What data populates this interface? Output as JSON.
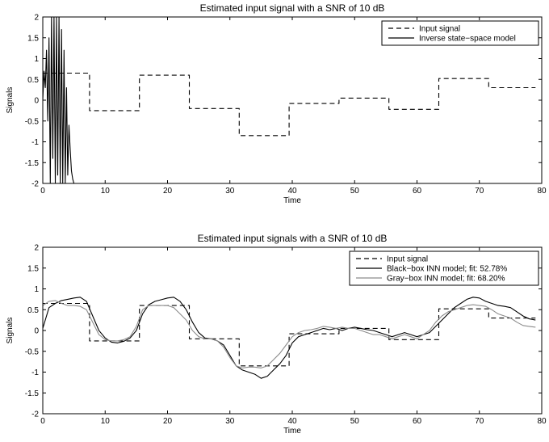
{
  "chart_data": [
    {
      "type": "line",
      "title": "Estimated input signal with a SNR of 10 dB",
      "xlabel": "Time",
      "ylabel": "Signals",
      "xlim": [
        0,
        80
      ],
      "ylim": [
        -2,
        2
      ],
      "xticks": [
        "0",
        "10",
        "20",
        "30",
        "40",
        "50",
        "60",
        "70",
        "80"
      ],
      "yticks": [
        "-2",
        "-1.5",
        "-1",
        "-0.5",
        "0",
        "0.5",
        "1",
        "1.5",
        "2"
      ],
      "legend_position": "top-right",
      "grid": false,
      "series": [
        {
          "name": "Input signal",
          "style": "dashed",
          "color": "#000000",
          "x": [
            0,
            7.5,
            7.5,
            15.5,
            15.5,
            23.5,
            23.5,
            31.5,
            31.5,
            39.5,
            39.5,
            47.5,
            47.5,
            55.5,
            55.5,
            63.5,
            63.5,
            71.5,
            71.5,
            79
          ],
          "y": [
            0.65,
            0.65,
            -0.25,
            -0.25,
            0.6,
            0.6,
            -0.2,
            -0.2,
            -0.85,
            -0.85,
            -0.08,
            -0.08,
            0.05,
            0.05,
            -0.22,
            -0.22,
            0.52,
            0.52,
            0.3,
            0.3
          ]
        },
        {
          "name": "Inverse state−space model",
          "style": "solid",
          "color": "#000000",
          "x": [
            0,
            0.2,
            0.4,
            0.6,
            0.8,
            1.0,
            1.2,
            1.4,
            1.6,
            1.8,
            2.0,
            2.2,
            2.4,
            2.6,
            2.8,
            3.0,
            3.2,
            3.4,
            3.6,
            3.8,
            4.0,
            4.2,
            4.4,
            4.6,
            4.8,
            5.0,
            5.2
          ],
          "y": [
            0.0,
            0.7,
            0.3,
            1.2,
            -0.5,
            1.5,
            -2.0,
            2.0,
            -1.4,
            2.0,
            -2.0,
            2.0,
            -1.8,
            2.0,
            -2.0,
            1.7,
            -2.0,
            1.2,
            -2.0,
            0.3,
            -1.8,
            -0.6,
            -1.2,
            -1.7,
            -1.9,
            -2.0,
            -2.0
          ]
        }
      ]
    },
    {
      "type": "line",
      "title": "Estimated input signals with a SNR of 10 dB",
      "xlabel": "Time",
      "ylabel": "Signals",
      "xlim": [
        0,
        80
      ],
      "ylim": [
        -2,
        2
      ],
      "xticks": [
        "0",
        "10",
        "20",
        "30",
        "40",
        "50",
        "60",
        "70",
        "80"
      ],
      "yticks": [
        "-2",
        "-1.5",
        "-1",
        "-0.5",
        "0",
        "0.5",
        "1",
        "1.5",
        "2"
      ],
      "legend_position": "top-right",
      "grid": false,
      "series": [
        {
          "name": "Input signal",
          "style": "dashed",
          "color": "#000000",
          "x": [
            0,
            7.5,
            7.5,
            15.5,
            15.5,
            23.5,
            23.5,
            31.5,
            31.5,
            39.5,
            39.5,
            47.5,
            47.5,
            55.5,
            55.5,
            63.5,
            63.5,
            71.5,
            71.5,
            79
          ],
          "y": [
            0.65,
            0.65,
            -0.25,
            -0.25,
            0.6,
            0.6,
            -0.2,
            -0.2,
            -0.85,
            -0.85,
            -0.08,
            -0.08,
            0.05,
            0.05,
            -0.22,
            -0.22,
            0.52,
            0.52,
            0.3,
            0.3
          ]
        },
        {
          "name": "Black−box INN model; fit: 52.78%",
          "style": "solid",
          "color": "#000000",
          "x": [
            0,
            1,
            2,
            3,
            4,
            5,
            6,
            7,
            8,
            9,
            10,
            11,
            12,
            13,
            14,
            15,
            16,
            17,
            18,
            19,
            20,
            21,
            22,
            23,
            24,
            25,
            26,
            27,
            28,
            29,
            30,
            31,
            32,
            33,
            34,
            35,
            36,
            37,
            38,
            39,
            40,
            41,
            42,
            43,
            44,
            45,
            46,
            47,
            48,
            49,
            50,
            51,
            52,
            53,
            54,
            55,
            56,
            57,
            58,
            59,
            60,
            61,
            62,
            63,
            64,
            65,
            66,
            67,
            68,
            69,
            70,
            71,
            72,
            73,
            74,
            75,
            76,
            77,
            78,
            79
          ],
          "y": [
            0.05,
            0.55,
            0.65,
            0.72,
            0.75,
            0.78,
            0.8,
            0.7,
            0.35,
            0.0,
            -0.18,
            -0.28,
            -0.3,
            -0.26,
            -0.18,
            0.0,
            0.4,
            0.62,
            0.7,
            0.74,
            0.78,
            0.8,
            0.7,
            0.5,
            0.2,
            -0.05,
            -0.18,
            -0.2,
            -0.25,
            -0.35,
            -0.6,
            -0.85,
            -0.95,
            -1.0,
            -1.05,
            -1.15,
            -1.1,
            -0.95,
            -0.8,
            -0.6,
            -0.3,
            -0.15,
            -0.1,
            -0.05,
            0.0,
            0.05,
            0.02,
            0.05,
            0.0,
            0.05,
            0.08,
            0.05,
            0.02,
            0.0,
            -0.05,
            -0.1,
            -0.15,
            -0.1,
            -0.05,
            -0.1,
            -0.15,
            -0.1,
            -0.05,
            0.1,
            0.25,
            0.4,
            0.55,
            0.65,
            0.75,
            0.8,
            0.78,
            0.7,
            0.65,
            0.6,
            0.58,
            0.55,
            0.45,
            0.35,
            0.28,
            0.25
          ]
        },
        {
          "name": "Gray−box INN model; fit: 68.20%",
          "style": "solid",
          "color": "#8c8c8c",
          "x": [
            0,
            1,
            2,
            3,
            4,
            5,
            6,
            7,
            8,
            9,
            10,
            11,
            12,
            13,
            14,
            15,
            16,
            17,
            18,
            19,
            20,
            21,
            22,
            23,
            24,
            25,
            26,
            27,
            28,
            29,
            30,
            31,
            32,
            33,
            34,
            35,
            36,
            37,
            38,
            39,
            40,
            41,
            42,
            43,
            44,
            45,
            46,
            47,
            48,
            49,
            50,
            51,
            52,
            53,
            54,
            55,
            56,
            57,
            58,
            59,
            60,
            61,
            62,
            63,
            64,
            65,
            66,
            67,
            68,
            69,
            70,
            71,
            72,
            73,
            74,
            75,
            76,
            77,
            78,
            79
          ],
          "y": [
            0.6,
            0.7,
            0.72,
            0.65,
            0.6,
            0.6,
            0.58,
            0.5,
            0.2,
            -0.1,
            -0.22,
            -0.25,
            -0.25,
            -0.22,
            -0.15,
            0.1,
            0.5,
            0.6,
            0.6,
            0.6,
            0.6,
            0.55,
            0.4,
            0.25,
            0.0,
            -0.15,
            -0.2,
            -0.2,
            -0.25,
            -0.4,
            -0.65,
            -0.85,
            -0.9,
            -0.88,
            -0.88,
            -0.9,
            -0.85,
            -0.7,
            -0.55,
            -0.35,
            -0.15,
            -0.05,
            0.0,
            0.02,
            0.05,
            0.1,
            0.08,
            0.05,
            0.08,
            0.05,
            0.05,
            0.0,
            -0.05,
            -0.1,
            -0.1,
            -0.15,
            -0.2,
            -0.15,
            -0.1,
            -0.15,
            -0.2,
            -0.1,
            0.0,
            0.2,
            0.35,
            0.45,
            0.5,
            0.55,
            0.6,
            0.62,
            0.6,
            0.58,
            0.5,
            0.4,
            0.35,
            0.3,
            0.2,
            0.12,
            0.1,
            0.08
          ]
        }
      ]
    }
  ]
}
